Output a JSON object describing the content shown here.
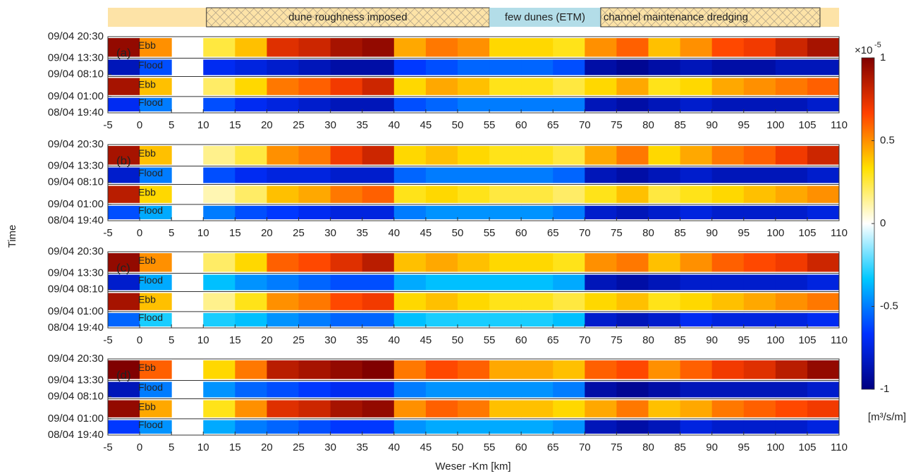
{
  "chart_data": {
    "type": "heatmap",
    "xlabel": "Weser -Km [km]",
    "ylabel": "Time",
    "xlim": [
      -5,
      110
    ],
    "xticks": [
      -5,
      0,
      5,
      10,
      15,
      20,
      25,
      30,
      35,
      40,
      45,
      50,
      55,
      60,
      65,
      70,
      75,
      80,
      85,
      90,
      95,
      100,
      105,
      110
    ],
    "ylim": [
      19.67,
      44.5
    ],
    "yticks": [
      {
        "value": 44.5,
        "label": "09/04 20:30"
      },
      {
        "value": 37.5,
        "label": "09/04 13:30"
      },
      {
        "value": 32.17,
        "label": "09/04 08:10"
      },
      {
        "value": 25,
        "label": "09/04 01:00"
      },
      {
        "value": 19.67,
        "label": "08/04 19:40"
      }
    ],
    "xbins": [
      -5,
      0,
      5,
      10,
      15,
      20,
      25,
      30,
      35,
      40,
      45,
      50,
      55,
      60,
      65,
      70,
      75,
      80,
      85,
      90,
      95,
      100,
      105,
      110
    ],
    "yedges": [
      19.67,
      25,
      31.5,
      37.5,
      44.5
    ],
    "clim": [
      -1,
      1
    ],
    "cticks": [
      -1,
      -0.5,
      0,
      0.5,
      1
    ],
    "colorbar_scale": "×10",
    "colorbar_exponent": "-5",
    "colorbar_unit": "[m³/s/m]",
    "colormap": [
      "#000080",
      "#0030ff",
      "#00c8ff",
      "#ffffff",
      "#ffe000",
      "#ff4000",
      "#800000"
    ],
    "regions": [
      {
        "label": "dune roughness imposed",
        "x0": 10.5,
        "x1": 55,
        "color": "#fde3a7"
      },
      {
        "label": "few dunes (ETM)",
        "x0": 55,
        "x1": 72.5,
        "color": "#b3dde8"
      },
      {
        "label": "channel maintenance dredging",
        "x0": 72.5,
        "x1": 107,
        "color": "#fde3a7"
      }
    ],
    "panels": [
      {
        "label": "(a)",
        "rows": [
          {
            "name": "Flood",
            "values": [
              -0.7,
              -0.5,
              null,
              -0.6,
              -0.7,
              -0.75,
              -0.8,
              -0.85,
              -0.85,
              -0.6,
              -0.55,
              -0.5,
              -0.5,
              -0.5,
              -0.5,
              -0.85,
              -0.9,
              -0.85,
              -0.8,
              -0.85,
              -0.85,
              -0.85,
              -0.8
            ]
          },
          {
            "name": "Ebb",
            "values": [
              0.9,
              0.4,
              null,
              0.2,
              0.35,
              0.55,
              0.6,
              0.7,
              0.8,
              0.35,
              0.45,
              0.4,
              0.3,
              0.3,
              0.25,
              0.35,
              0.45,
              0.3,
              0.35,
              0.45,
              0.5,
              0.55,
              0.6
            ]
          },
          {
            "name": "Flood",
            "values": [
              -0.85,
              -0.6,
              null,
              -0.7,
              -0.75,
              -0.8,
              -0.85,
              -0.9,
              -0.9,
              -0.65,
              -0.6,
              -0.55,
              -0.55,
              -0.55,
              -0.6,
              -0.9,
              -0.95,
              -0.9,
              -0.85,
              -0.9,
              -0.9,
              -0.85,
              -0.85
            ]
          },
          {
            "name": "Ebb",
            "values": [
              0.95,
              0.5,
              null,
              0.25,
              0.4,
              0.75,
              0.8,
              0.9,
              0.95,
              0.45,
              0.55,
              0.5,
              0.35,
              0.35,
              0.3,
              0.5,
              0.6,
              0.4,
              0.5,
              0.65,
              0.7,
              0.8,
              0.9
            ]
          }
        ]
      },
      {
        "label": "(b)",
        "rows": [
          {
            "name": "Flood",
            "values": [
              -0.6,
              -0.4,
              null,
              -0.5,
              -0.6,
              -0.65,
              -0.7,
              -0.75,
              -0.75,
              -0.5,
              -0.45,
              -0.45,
              -0.45,
              -0.45,
              -0.5,
              -0.8,
              -0.85,
              -0.8,
              -0.75,
              -0.8,
              -0.8,
              -0.8,
              -0.75
            ]
          },
          {
            "name": "Ebb",
            "values": [
              0.85,
              0.35,
              null,
              0.1,
              0.2,
              0.4,
              0.45,
              0.55,
              0.6,
              0.3,
              0.35,
              0.3,
              0.25,
              0.25,
              0.2,
              0.3,
              0.4,
              0.25,
              0.3,
              0.35,
              0.4,
              0.45,
              0.5
            ]
          },
          {
            "name": "Flood",
            "values": [
              -0.8,
              -0.5,
              null,
              -0.6,
              -0.7,
              -0.75,
              -0.75,
              -0.8,
              -0.8,
              -0.55,
              -0.5,
              -0.5,
              -0.5,
              -0.5,
              -0.55,
              -0.85,
              -0.9,
              -0.85,
              -0.8,
              -0.85,
              -0.85,
              -0.85,
              -0.8
            ]
          },
          {
            "name": "Ebb",
            "values": [
              0.9,
              0.4,
              null,
              0.15,
              0.25,
              0.5,
              0.55,
              0.7,
              0.8,
              0.35,
              0.4,
              0.35,
              0.3,
              0.3,
              0.25,
              0.45,
              0.55,
              0.35,
              0.45,
              0.55,
              0.6,
              0.7,
              0.8
            ]
          }
        ]
      },
      {
        "label": "(c)",
        "rows": [
          {
            "name": "Flood",
            "values": [
              -0.55,
              -0.3,
              null,
              -0.3,
              -0.35,
              -0.45,
              -0.5,
              -0.55,
              -0.55,
              -0.35,
              -0.3,
              -0.3,
              -0.3,
              -0.3,
              -0.35,
              -0.8,
              -0.85,
              -0.8,
              -0.7,
              -0.75,
              -0.75,
              -0.75,
              -0.7
            ]
          },
          {
            "name": "Ebb",
            "values": [
              0.9,
              0.4,
              null,
              0.15,
              0.3,
              0.5,
              0.55,
              0.65,
              0.7,
              0.35,
              0.4,
              0.35,
              0.3,
              0.3,
              0.25,
              0.35,
              0.4,
              0.3,
              0.35,
              0.4,
              0.45,
              0.5,
              0.55
            ]
          },
          {
            "name": "Flood",
            "values": [
              -0.8,
              -0.4,
              null,
              -0.35,
              -0.45,
              -0.5,
              -0.55,
              -0.6,
              -0.6,
              -0.4,
              -0.35,
              -0.35,
              -0.35,
              -0.35,
              -0.4,
              -0.85,
              -0.9,
              -0.85,
              -0.8,
              -0.8,
              -0.8,
              -0.8,
              -0.75
            ]
          },
          {
            "name": "Ebb",
            "values": [
              0.95,
              0.5,
              null,
              0.2,
              0.35,
              0.6,
              0.65,
              0.75,
              0.85,
              0.4,
              0.45,
              0.4,
              0.35,
              0.35,
              0.3,
              0.5,
              0.55,
              0.4,
              0.5,
              0.6,
              0.65,
              0.7,
              0.8
            ]
          }
        ]
      },
      {
        "label": "(d)",
        "rows": [
          {
            "name": "Flood",
            "values": [
              -0.65,
              -0.45,
              null,
              -0.4,
              -0.5,
              -0.55,
              -0.6,
              -0.65,
              -0.65,
              -0.45,
              -0.4,
              -0.4,
              -0.4,
              -0.4,
              -0.45,
              -0.85,
              -0.9,
              -0.85,
              -0.75,
              -0.8,
              -0.8,
              -0.8,
              -0.75
            ]
          },
          {
            "name": "Ebb",
            "values": [
              0.95,
              0.45,
              null,
              0.3,
              0.5,
              0.75,
              0.8,
              0.9,
              0.95,
              0.5,
              0.6,
              0.55,
              0.4,
              0.4,
              0.35,
              0.45,
              0.55,
              0.4,
              0.45,
              0.55,
              0.6,
              0.65,
              0.7
            ]
          },
          {
            "name": "Flood",
            "values": [
              -0.85,
              -0.5,
              null,
              -0.45,
              -0.55,
              -0.6,
              -0.65,
              -0.7,
              -0.7,
              -0.5,
              -0.45,
              -0.45,
              -0.45,
              -0.45,
              -0.5,
              -0.9,
              -0.95,
              -0.9,
              -0.85,
              -0.85,
              -0.85,
              -0.85,
              -0.8
            ]
          },
          {
            "name": "Ebb",
            "values": [
              1,
              0.6,
              null,
              0.35,
              0.55,
              0.85,
              0.9,
              0.95,
              1,
              0.55,
              0.65,
              0.6,
              0.45,
              0.45,
              0.4,
              0.6,
              0.65,
              0.5,
              0.6,
              0.7,
              0.75,
              0.85,
              0.95
            ]
          }
        ]
      }
    ]
  }
}
